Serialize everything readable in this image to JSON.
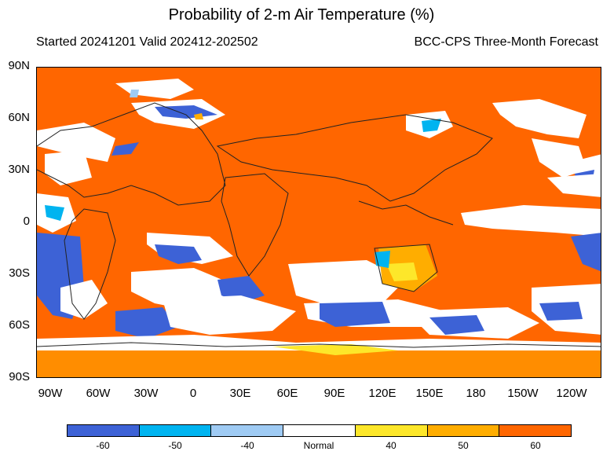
{
  "header": {
    "title": "Probability of 2-m Air Temperature (%)",
    "started": "Started 20241201  Valid 202412-202502",
    "model": "BCC-CPS Three-Month Forecast"
  },
  "map": {
    "lat_labels": [
      "90N",
      "60N",
      "30N",
      "0",
      "30S",
      "60S",
      "90S"
    ],
    "lon_labels": [
      "90W",
      "60W",
      "30W",
      "0",
      "30E",
      "60E",
      "90E",
      "120E",
      "150E",
      "180",
      "150W",
      "120W"
    ],
    "background_color": "#ff6600",
    "region_colors": {
      "normal": "#ffffff",
      "below_60": "#3d62d6",
      "below_50": "#00b4f0",
      "below_40": "#9fcbf4",
      "above_40": "#fde72a",
      "above_50": "#ffad00",
      "above_60": "#ff6600"
    }
  },
  "legend": {
    "items": [
      {
        "label": "-60",
        "color": "#3d62d6"
      },
      {
        "label": "-50",
        "color": "#00b4f0"
      },
      {
        "label": "-40",
        "color": "#9fcbf4"
      },
      {
        "label": "Normal",
        "color": "#ffffff"
      },
      {
        "label": "40",
        "color": "#fde72a"
      },
      {
        "label": "50",
        "color": "#ffad00"
      },
      {
        "label": "60",
        "color": "#ff6600"
      }
    ]
  }
}
